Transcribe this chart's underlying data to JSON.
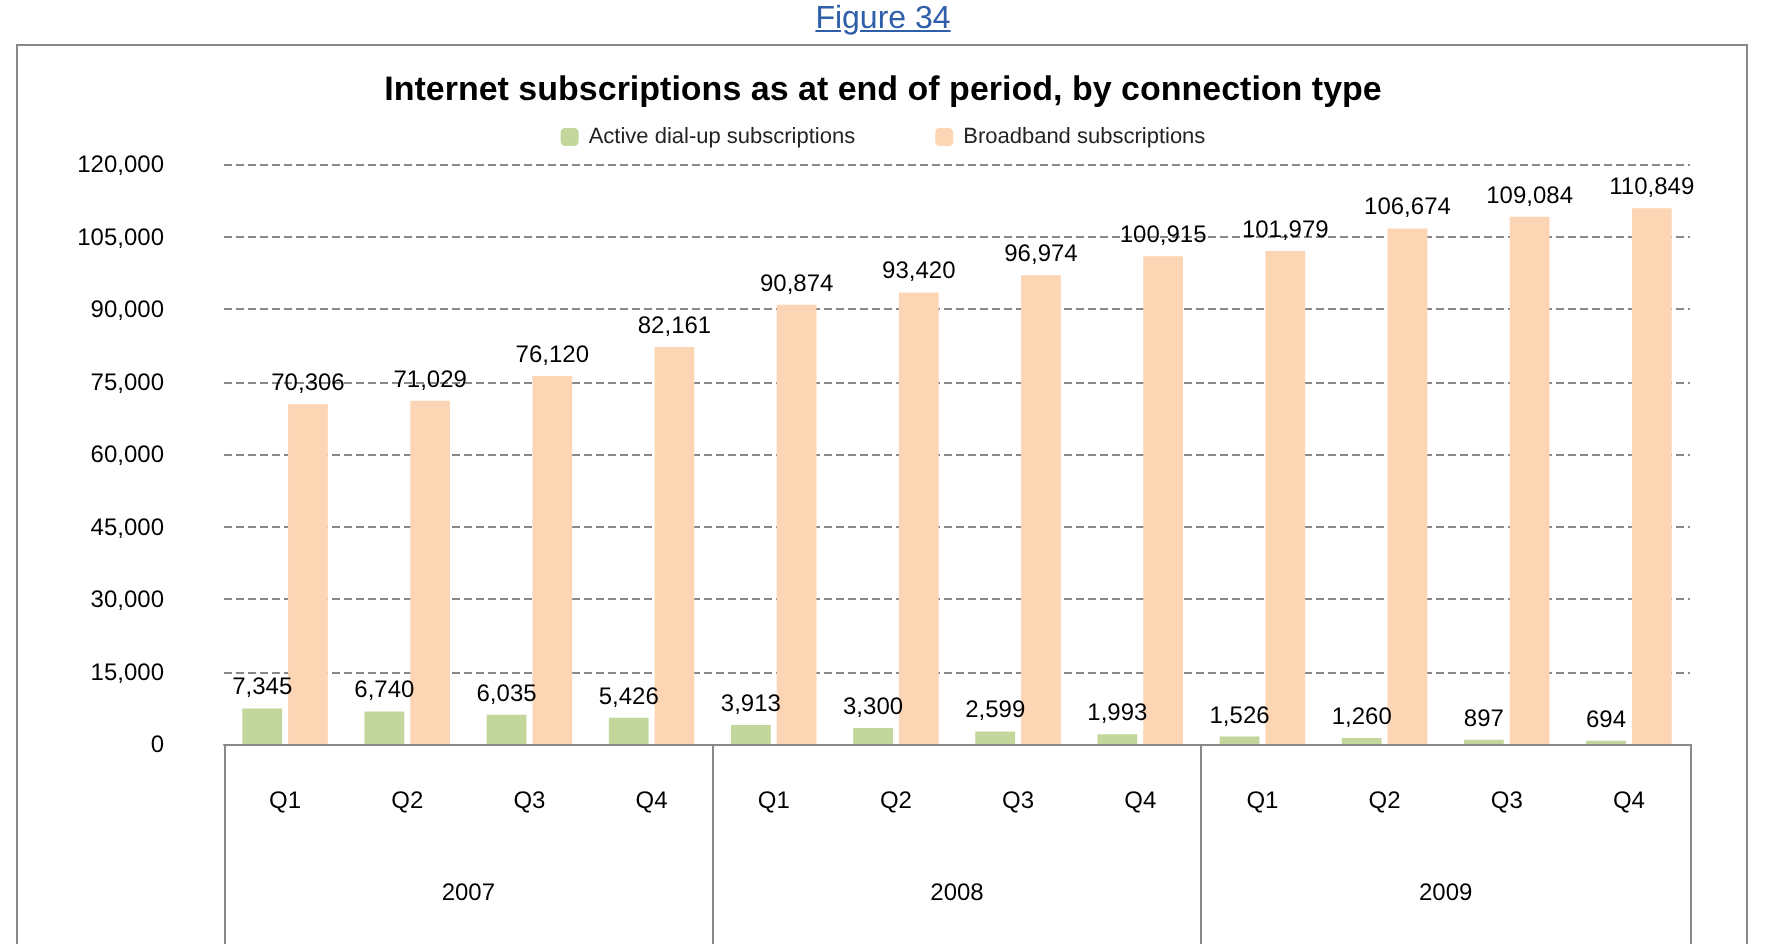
{
  "chart_data": {
    "type": "bar",
    "title": "Internet subscriptions as at end of period, by connection type",
    "categories": [
      "Q1",
      "Q2",
      "Q3",
      "Q4",
      "Q1",
      "Q2",
      "Q3",
      "Q4",
      "Q1",
      "Q2",
      "Q3",
      "Q4"
    ],
    "series": [
      {
        "name": "Active dial-up subscriptions",
        "color": "#c3d69b",
        "values": [
          7345,
          6740,
          6035,
          5426,
          3913,
          3300,
          2599,
          1993,
          1526,
          1260,
          897,
          694
        ],
        "value_labels": [
          "7,345",
          "6,740",
          "6,035",
          "5,426",
          "3,913",
          "3,300",
          "2,599",
          "1,993",
          "1,526",
          "1,260",
          "897",
          "694"
        ]
      },
      {
        "name": "Broadband subscriptions",
        "color": "#fcd5b5",
        "values": [
          70306,
          71029,
          76120,
          82161,
          90874,
          93420,
          96974,
          100915,
          101979,
          106674,
          109084,
          110849
        ],
        "value_labels": [
          "70,306",
          "71,029",
          "76,120",
          "82,161",
          "90,874",
          "93,420",
          "96,974",
          "100,915",
          "101,979",
          "106,674",
          "109,084",
          "110,849"
        ]
      }
    ],
    "annotations": [
      "Figure 34",
      "2007",
      "2008",
      "2009"
    ],
    "ylim": [
      0,
      120000
    ],
    "yticks": [
      0,
      {
        "value": 15000,
        "label": "15,000"
      },
      {
        "value": 30000,
        "label": "30,000"
      },
      {
        "value": 45000,
        "label": "45,000"
      },
      {
        "value": 60000,
        "label": "60,000"
      },
      {
        "value": 75000,
        "label": "75,000"
      },
      {
        "value": 90000,
        "label": "90,000"
      },
      {
        "value": 105000,
        "label": "105,000"
      },
      {
        "value": 120000,
        "label": "120,000"
      }
    ],
    "grid": "y",
    "legend": "top"
  }
}
